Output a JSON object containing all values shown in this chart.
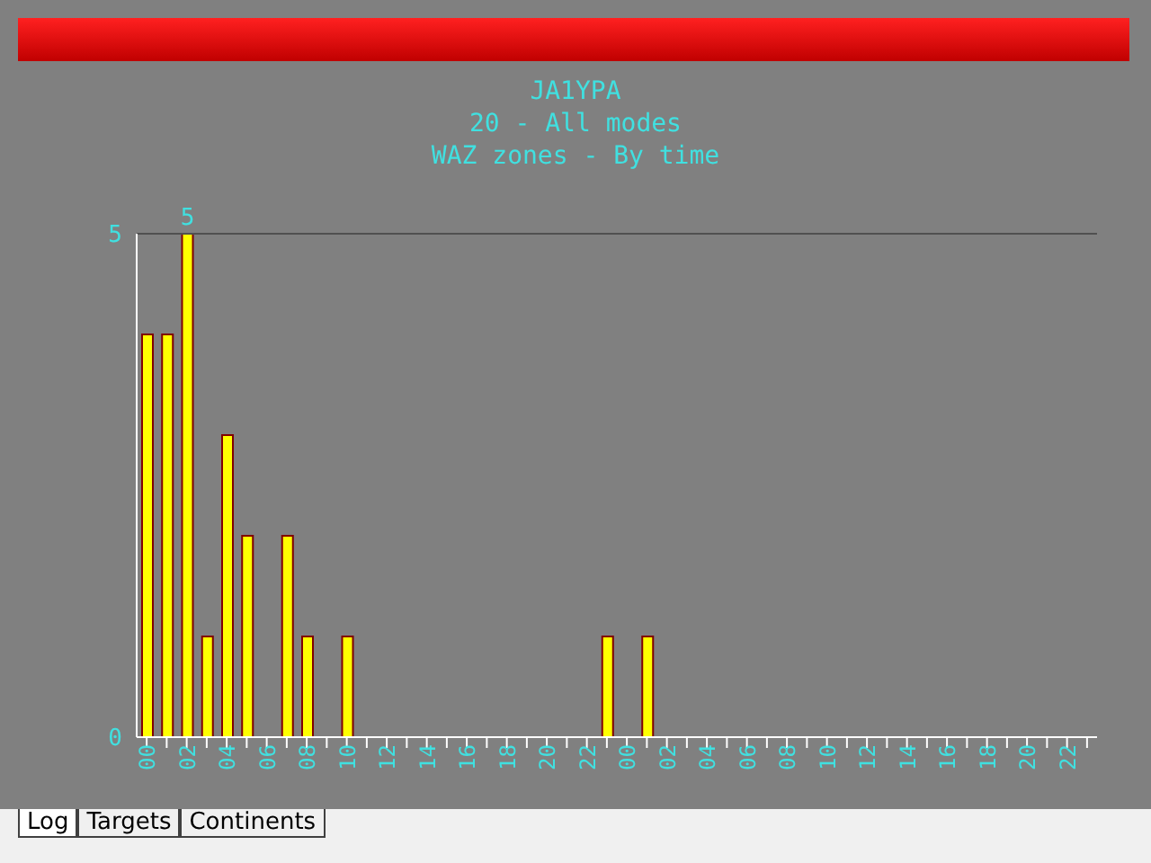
{
  "chart_data": {
    "type": "bar",
    "title": "JA1YPA",
    "subtitle": "20 - All modes\nWAZ zones - By time",
    "categories": [
      "00",
      null,
      "02",
      null,
      "04",
      null,
      "06",
      null,
      "08",
      null,
      "10",
      null,
      "12",
      null,
      "14",
      null,
      "16",
      null,
      "18",
      null,
      "20",
      null,
      "22",
      null,
      "00",
      null,
      "02",
      null,
      "04",
      null,
      "06",
      null,
      "08",
      null,
      "10",
      null,
      "12",
      null,
      "14",
      null,
      "16",
      null,
      "18",
      null,
      "20",
      null,
      "22",
      null
    ],
    "values": [
      4,
      4,
      5,
      1,
      3,
      2,
      0,
      2,
      1,
      0,
      1,
      0,
      0,
      0,
      0,
      0,
      0,
      0,
      0,
      0,
      0,
      0,
      0,
      1,
      0,
      1,
      0,
      0,
      0,
      0,
      0,
      0,
      0,
      0,
      0,
      0,
      0,
      0,
      0,
      0,
      0,
      0,
      0,
      0,
      0,
      0,
      0,
      0
    ],
    "value_labels": [
      null,
      null,
      "5",
      null,
      null,
      null,
      null,
      null,
      null,
      null,
      null,
      null,
      null,
      null,
      null,
      null,
      null,
      null,
      null,
      null,
      null,
      null,
      null,
      null,
      null,
      null,
      null,
      null,
      null,
      null,
      null,
      null,
      null,
      null,
      null,
      null,
      null,
      null,
      null,
      null,
      null,
      null,
      null,
      null,
      null,
      null,
      null,
      null
    ],
    "color": "#ffff00",
    "ylim": [
      0,
      5
    ],
    "yticks": [
      0,
      5
    ],
    "ref_lines": [
      {
        "axis": "y",
        "value": 5,
        "color": "#505050"
      }
    ],
    "annotations": [
      "Log",
      "Targets",
      "Continents"
    ]
  }
}
